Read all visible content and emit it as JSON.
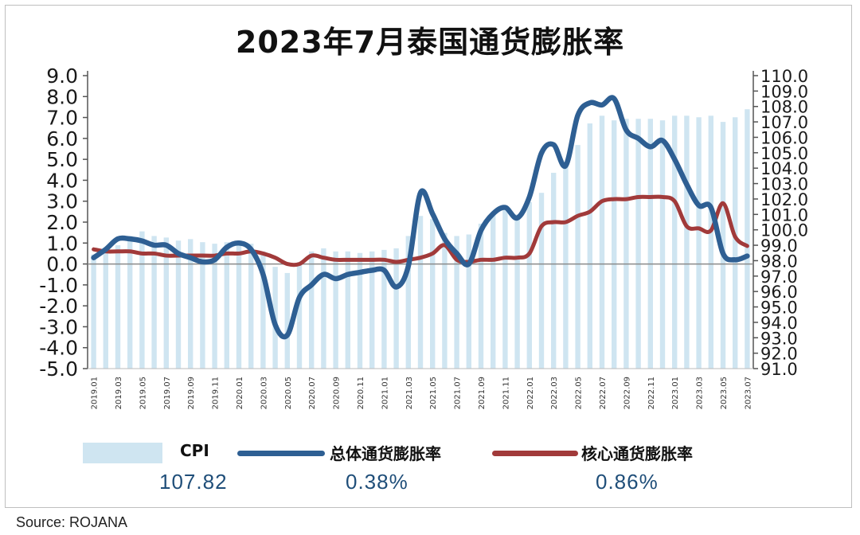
{
  "chart_data": {
    "type": "line",
    "title": "2023年7月泰国通货膨胀率",
    "x": [
      "2019.01",
      "2019.02",
      "2019.03",
      "2019.04",
      "2019.05",
      "2019.06",
      "2019.07",
      "2019.08",
      "2019.09",
      "2019.10",
      "2019.11",
      "2019.12",
      "2020.01",
      "2020.02",
      "2020.03",
      "2020.04",
      "2020.05",
      "2020.06",
      "2020.07",
      "2020.08",
      "2020.09",
      "2020.10",
      "2020.11",
      "2020.12",
      "2021.01",
      "2021.02",
      "2021.03",
      "2021.04",
      "2021.05",
      "2021.06",
      "2021.07",
      "2021.08",
      "2021.09",
      "2021.10",
      "2021.11",
      "2021.12",
      "2022.01",
      "2022.02",
      "2022.03",
      "2022.04",
      "2022.05",
      "2022.06",
      "2022.07",
      "2022.08",
      "2022.09",
      "2022.10",
      "2022.11",
      "2022.12",
      "2023.01",
      "2023.02",
      "2023.03",
      "2023.04",
      "2023.05",
      "2023.06",
      "2023.07"
    ],
    "x_tick_labels": [
      "2019.01",
      "2019.03",
      "2019.05",
      "2019.07",
      "2019.09",
      "2019.11",
      "2020.01",
      "2020.03",
      "2020.05",
      "2020.07",
      "2020.09",
      "2020.11",
      "2021.01",
      "2021.03",
      "2021.05",
      "2021.07",
      "2021.09",
      "2021.11",
      "2022.01",
      "2022.03",
      "2022.05",
      "2022.07",
      "2022.09",
      "2022.11",
      "2023.01",
      "2023.03",
      "2023.05",
      "2023.07"
    ],
    "y_left": {
      "range": [
        -5.0,
        9.0
      ],
      "ticks": [
        "9.0",
        "8.0",
        "7.0",
        "6.0",
        "5.0",
        "4.0",
        "3.0",
        "2.0",
        "1.0",
        "0.0",
        "-1.0",
        "-2.0",
        "-3.0",
        "-4.0",
        "-5.0"
      ]
    },
    "y_right": {
      "range": [
        91.0,
        110.0
      ],
      "ticks": [
        "110.0",
        "109.0",
        "108.0",
        "107.0",
        "106.0",
        "105.0",
        "104.0",
        "103.0",
        "102.0",
        "101.0",
        "100.0",
        "99.0",
        "98.0",
        "97.0",
        "96.0",
        "95.0",
        "94.0",
        "93.0",
        "92.0",
        "91.0"
      ]
    },
    "series": [
      {
        "name": "CPI",
        "type": "bar",
        "axis": "right",
        "color": "#cfe5f1",
        "values": [
          98.4,
          98.6,
          99.0,
          99.6,
          99.9,
          99.6,
          99.5,
          99.3,
          99.4,
          99.2,
          99.1,
          99.2,
          99.3,
          99.1,
          98.6,
          97.6,
          97.2,
          97.9,
          98.6,
          98.8,
          98.6,
          98.6,
          98.5,
          98.6,
          98.7,
          98.8,
          99.6,
          100.9,
          100.7,
          99.8,
          99.6,
          99.7,
          100.4,
          101.0,
          101.3,
          101.0,
          101.8,
          102.4,
          103.7,
          104.4,
          105.5,
          106.9,
          107.4,
          107.1,
          107.2,
          107.2,
          107.2,
          107.1,
          107.4,
          107.4,
          107.3,
          107.4,
          107.0,
          107.3,
          107.82
        ]
      },
      {
        "name": "总体通货膨胀率",
        "type": "line",
        "axis": "left",
        "color": "#2e5f93",
        "values": [
          0.3,
          0.7,
          1.2,
          1.2,
          1.1,
          0.9,
          0.9,
          0.5,
          0.3,
          0.1,
          0.2,
          0.8,
          1.0,
          0.7,
          -0.5,
          -2.9,
          -3.4,
          -1.6,
          -1.0,
          -0.5,
          -0.7,
          -0.5,
          -0.4,
          -0.3,
          -0.3,
          -1.1,
          -0.1,
          3.4,
          2.4,
          1.2,
          0.5,
          0.0,
          1.6,
          2.4,
          2.7,
          2.2,
          3.2,
          5.3,
          5.7,
          4.7,
          7.1,
          7.7,
          7.6,
          7.9,
          6.4,
          6.0,
          5.6,
          5.9,
          5.0,
          3.8,
          2.8,
          2.7,
          0.5,
          0.2,
          0.38
        ]
      },
      {
        "name": "核心通货膨胀率",
        "type": "line",
        "axis": "left",
        "color": "#a13a3a",
        "values": [
          0.7,
          0.6,
          0.6,
          0.6,
          0.5,
          0.5,
          0.4,
          0.4,
          0.4,
          0.4,
          0.4,
          0.5,
          0.5,
          0.6,
          0.5,
          0.3,
          0.0,
          0.0,
          0.4,
          0.3,
          0.2,
          0.2,
          0.2,
          0.2,
          0.2,
          0.1,
          0.2,
          0.3,
          0.5,
          0.9,
          0.2,
          0.1,
          0.2,
          0.2,
          0.3,
          0.3,
          0.5,
          1.8,
          2.0,
          2.0,
          2.3,
          2.5,
          3.0,
          3.1,
          3.1,
          3.2,
          3.2,
          3.2,
          3.0,
          1.8,
          1.7,
          1.6,
          2.9,
          1.3,
          0.86
        ]
      }
    ]
  },
  "legend": {
    "items": [
      {
        "label": "CPI",
        "value": "107.82"
      },
      {
        "label": "总体通货膨胀率",
        "value": "0.38%"
      },
      {
        "label": "核心通货膨胀率",
        "value": "0.86%"
      }
    ]
  },
  "source": "Source:  ROJANA"
}
